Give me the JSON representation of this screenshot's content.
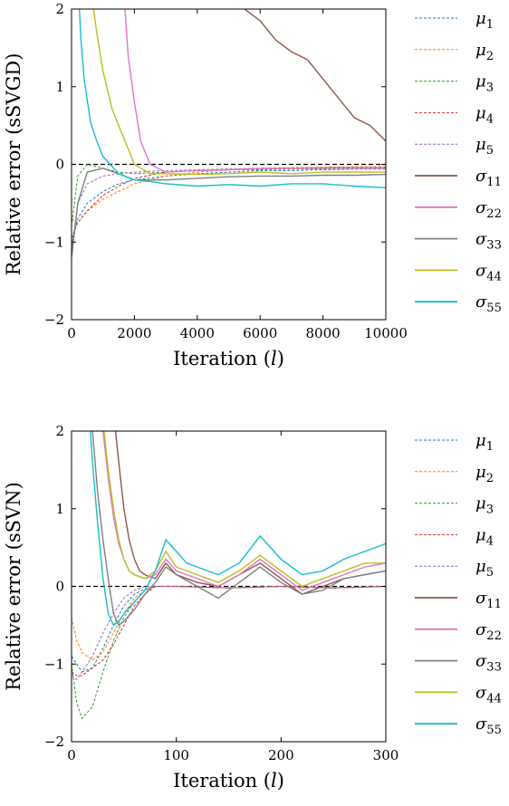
{
  "chart_data": [
    {
      "type": "line",
      "xlabel": "Iteration (l)",
      "ylabel": "Relative error (sSVGD)",
      "xlim": [
        0,
        10000
      ],
      "ylim": [
        -2,
        2
      ],
      "x_ticks": [
        "0",
        "2000",
        "4000",
        "6000",
        "8000",
        "10000"
      ],
      "y_ticks": [
        "−2",
        "−1",
        "0",
        "1",
        "2"
      ],
      "reference_line": 0,
      "legend_position": "right",
      "series": [
        {
          "name": "μ1",
          "color": "#1f77b4",
          "style": "dashed",
          "x": [
            0,
            200,
            500,
            1000,
            1500,
            2000,
            3000,
            4000,
            5000,
            6000,
            7000,
            8000,
            9000,
            10000
          ],
          "values": [
            -1.0,
            -0.7,
            -0.5,
            -0.35,
            -0.25,
            -0.2,
            -0.15,
            -0.12,
            -0.1,
            -0.08,
            -0.08,
            -0.07,
            -0.06,
            -0.06
          ]
        },
        {
          "name": "μ2",
          "color": "#ff7f0e",
          "style": "dashed",
          "x": [
            0,
            200,
            500,
            1000,
            1500,
            2000,
            3000,
            4000,
            5000,
            6000,
            7000,
            8000,
            9000,
            10000
          ],
          "values": [
            -0.7,
            -0.75,
            -0.6,
            -0.45,
            -0.35,
            -0.25,
            -0.15,
            -0.1,
            -0.07,
            -0.05,
            -0.04,
            -0.04,
            -0.03,
            -0.03
          ]
        },
        {
          "name": "μ3",
          "color": "#2ca02c",
          "style": "dashed",
          "x": [
            0,
            200,
            500,
            1000,
            1500,
            2000,
            3000,
            4000,
            5000,
            6000,
            7000,
            8000,
            9000,
            10000
          ],
          "values": [
            -0.8,
            -0.15,
            0.0,
            -0.05,
            -0.1,
            -0.12,
            -0.1,
            -0.08,
            -0.07,
            -0.07,
            -0.06,
            -0.06,
            -0.05,
            -0.05
          ]
        },
        {
          "name": "μ4",
          "color": "#d62728",
          "style": "dashed",
          "x": [
            0,
            200,
            500,
            1000,
            1500,
            2000,
            3000,
            4000,
            5000,
            6000,
            7000,
            8000,
            9000,
            10000
          ],
          "values": [
            -0.95,
            -0.75,
            -0.6,
            -0.4,
            -0.28,
            -0.18,
            -0.1,
            -0.08,
            -0.06,
            -0.05,
            -0.05,
            -0.04,
            -0.04,
            -0.04
          ]
        },
        {
          "name": "μ5",
          "color": "#9467bd",
          "style": "dashed",
          "x": [
            0,
            200,
            500,
            1000,
            1500,
            2000,
            3000,
            4000,
            5000,
            6000,
            7000,
            8000,
            9000,
            10000
          ],
          "values": [
            -1.1,
            -0.5,
            -0.25,
            -0.15,
            -0.12,
            -0.1,
            -0.08,
            -0.07,
            -0.06,
            -0.06,
            -0.05,
            -0.05,
            -0.05,
            -0.05
          ]
        },
        {
          "name": "σ11",
          "color": "#8c564b",
          "style": "solid",
          "x": [
            5500,
            6000,
            6500,
            7000,
            7500,
            8000,
            8500,
            9000,
            9500,
            10000
          ],
          "values": [
            2.0,
            1.85,
            1.6,
            1.45,
            1.35,
            1.1,
            0.85,
            0.6,
            0.5,
            0.3
          ]
        },
        {
          "name": "σ22",
          "color": "#e377c2",
          "style": "solid",
          "x": [
            1700,
            1800,
            2000,
            2200,
            2500,
            3000,
            4000,
            5000,
            6000,
            7000,
            8000,
            9000,
            10000
          ],
          "values": [
            2.0,
            1.4,
            0.8,
            0.3,
            0.0,
            -0.1,
            -0.08,
            -0.07,
            -0.05,
            -0.05,
            -0.05,
            -0.05,
            -0.05
          ]
        },
        {
          "name": "σ33",
          "color": "#7f7f7f",
          "style": "solid",
          "x": [
            0,
            200,
            500,
            1000,
            1500,
            2000,
            3000,
            4000,
            5000,
            6000,
            7000,
            8000,
            9000,
            10000
          ],
          "values": [
            -1.2,
            -0.5,
            -0.1,
            -0.05,
            -0.12,
            -0.2,
            -0.2,
            -0.18,
            -0.16,
            -0.15,
            -0.15,
            -0.14,
            -0.14,
            -0.13
          ]
        },
        {
          "name": "σ44",
          "color": "#bcbd22",
          "style": "solid",
          "x": [
            700,
            800,
            1000,
            1300,
            1700,
            2000,
            2500,
            3000,
            4000,
            5000,
            6000,
            7000,
            8000,
            9000,
            10000
          ],
          "values": [
            2.0,
            1.7,
            1.2,
            0.7,
            0.3,
            0.0,
            -0.12,
            -0.12,
            -0.13,
            -0.12,
            -0.1,
            -0.12,
            -0.1,
            -0.1,
            -0.1
          ]
        },
        {
          "name": "σ55",
          "color": "#17becf",
          "style": "solid",
          "x": [
            250,
            300,
            400,
            600,
            800,
            1000,
            1500,
            2000,
            2500,
            3000,
            4000,
            5000,
            6000,
            7000,
            8000,
            9000,
            10000
          ],
          "values": [
            2.0,
            1.6,
            1.1,
            0.55,
            0.3,
            0.1,
            -0.12,
            -0.2,
            -0.22,
            -0.25,
            -0.28,
            -0.26,
            -0.28,
            -0.25,
            -0.25,
            -0.28,
            -0.3
          ]
        }
      ]
    },
    {
      "type": "line",
      "xlabel": "Iteration (l)",
      "ylabel": "Relative error (sSVN)",
      "xlim": [
        0,
        300
      ],
      "ylim": [
        -2,
        2
      ],
      "x_ticks": [
        "0",
        "100",
        "200",
        "300"
      ],
      "y_ticks": [
        "−2",
        "−1",
        "0",
        "1",
        "2"
      ],
      "reference_line": 0,
      "legend_position": "right",
      "series": [
        {
          "name": "μ1",
          "color": "#1f77b4",
          "style": "dashed",
          "x": [
            0,
            10,
            20,
            30,
            40,
            50,
            60,
            70,
            80,
            100,
            150,
            200,
            250,
            300
          ],
          "values": [
            -0.9,
            -1.1,
            -1.05,
            -0.8,
            -0.5,
            -0.25,
            -0.1,
            -0.03,
            0.0,
            0.0,
            -0.02,
            0.0,
            -0.02,
            0.0
          ]
        },
        {
          "name": "μ2",
          "color": "#ff7f0e",
          "style": "dashed",
          "x": [
            0,
            5,
            10,
            20,
            30,
            40,
            50,
            60,
            70,
            80,
            100,
            150,
            200,
            250,
            300
          ],
          "values": [
            -0.4,
            -0.7,
            -0.85,
            -0.95,
            -0.85,
            -0.6,
            -0.35,
            -0.15,
            -0.05,
            0.0,
            0.0,
            -0.02,
            0.0,
            -0.02,
            0.0
          ]
        },
        {
          "name": "μ3",
          "color": "#2ca02c",
          "style": "dashed",
          "x": [
            0,
            5,
            10,
            20,
            30,
            40,
            50,
            60,
            70,
            80,
            100,
            150,
            200,
            250,
            300
          ],
          "values": [
            -1.0,
            -1.5,
            -1.7,
            -1.55,
            -1.1,
            -0.7,
            -0.4,
            -0.2,
            -0.05,
            0.0,
            0.0,
            -0.02,
            0.0,
            -0.02,
            0.0
          ]
        },
        {
          "name": "μ4",
          "color": "#d62728",
          "style": "dashed",
          "x": [
            0,
            5,
            10,
            20,
            30,
            40,
            50,
            60,
            70,
            80,
            100,
            150,
            200,
            250,
            300
          ],
          "values": [
            -1.1,
            -1.15,
            -1.15,
            -1.05,
            -0.95,
            -0.75,
            -0.5,
            -0.25,
            -0.1,
            0.0,
            0.0,
            -0.02,
            0.0,
            -0.02,
            0.0
          ]
        },
        {
          "name": "μ5",
          "color": "#9467bd",
          "style": "dashed",
          "x": [
            0,
            5,
            10,
            20,
            30,
            40,
            50,
            60,
            70,
            80,
            100,
            150,
            200,
            250,
            300
          ],
          "values": [
            -1.15,
            -1.2,
            -1.1,
            -0.9,
            -0.6,
            -0.35,
            -0.15,
            -0.05,
            0.0,
            0.0,
            0.0,
            -0.02,
            0.0,
            -0.02,
            0.0
          ]
        },
        {
          "name": "σ11",
          "color": "#8c564b",
          "style": "solid",
          "x": [
            42,
            45,
            50,
            55,
            60,
            65,
            70,
            80,
            90,
            100,
            120,
            140,
            160,
            180,
            200,
            220,
            240,
            260,
            280,
            300
          ],
          "values": [
            2.0,
            1.6,
            1.0,
            0.6,
            0.35,
            0.2,
            0.15,
            0.1,
            0.3,
            0.15,
            0.05,
            0.0,
            0.15,
            0.3,
            0.1,
            -0.1,
            0.0,
            0.1,
            0.15,
            0.2
          ]
        },
        {
          "name": "σ22",
          "color": "#e377c2",
          "style": "solid",
          "x": [
            30,
            35,
            40,
            45,
            50,
            55,
            60,
            70,
            80,
            90,
            100,
            120,
            140,
            160,
            180,
            200,
            220,
            240,
            260,
            280,
            300
          ],
          "values": [
            2.0,
            1.4,
            0.9,
            0.55,
            0.35,
            0.2,
            0.15,
            0.1,
            0.15,
            0.35,
            0.2,
            0.1,
            0.0,
            0.15,
            0.35,
            0.15,
            -0.05,
            0.05,
            0.15,
            0.25,
            0.3
          ]
        },
        {
          "name": "σ33",
          "color": "#7f7f7f",
          "style": "solid",
          "x": [
            20,
            25,
            30,
            35,
            40,
            45,
            50,
            60,
            70,
            80,
            90,
            100,
            120,
            140,
            160,
            180,
            200,
            220,
            240,
            260,
            280,
            300
          ],
          "values": [
            2.0,
            1.2,
            0.6,
            0.1,
            -0.35,
            -0.5,
            -0.45,
            -0.3,
            -0.1,
            0.05,
            0.25,
            0.15,
            0.0,
            -0.15,
            0.05,
            0.25,
            0.05,
            -0.1,
            -0.05,
            0.1,
            0.15,
            0.2
          ]
        },
        {
          "name": "σ44",
          "color": "#bcbd22",
          "style": "solid",
          "x": [
            31,
            35,
            40,
            45,
            50,
            55,
            60,
            70,
            80,
            90,
            100,
            120,
            140,
            160,
            180,
            200,
            220,
            240,
            260,
            280,
            300
          ],
          "values": [
            2.0,
            1.5,
            1.0,
            0.6,
            0.35,
            0.2,
            0.15,
            0.1,
            0.2,
            0.45,
            0.25,
            0.15,
            0.05,
            0.2,
            0.4,
            0.2,
            0.0,
            0.1,
            0.2,
            0.3,
            0.3
          ]
        },
        {
          "name": "σ55",
          "color": "#17becf",
          "style": "solid",
          "x": [
            18,
            20,
            25,
            30,
            35,
            40,
            45,
            50,
            60,
            70,
            80,
            90,
            100,
            110,
            120,
            140,
            160,
            180,
            190,
            200,
            220,
            240,
            260,
            280,
            300
          ],
          "values": [
            2.0,
            1.6,
            0.8,
            0.1,
            -0.35,
            -0.5,
            -0.45,
            -0.35,
            -0.2,
            -0.05,
            0.2,
            0.6,
            0.45,
            0.3,
            0.25,
            0.15,
            0.3,
            0.65,
            0.5,
            0.35,
            0.15,
            0.2,
            0.35,
            0.45,
            0.55
          ]
        }
      ]
    }
  ]
}
